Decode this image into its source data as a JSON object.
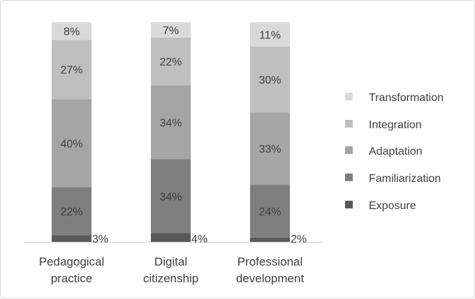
{
  "chart_data": {
    "type": "stacked-bar-100",
    "categories": [
      [
        "Pedagogical",
        "practice"
      ],
      [
        "Digital",
        "citizenship"
      ],
      [
        "Professional",
        "development"
      ]
    ],
    "series": [
      {
        "name": "Exposure",
        "values": [
          3,
          4,
          2
        ],
        "color": "#595959"
      },
      {
        "name": "Familiarization",
        "values": [
          22,
          34,
          24
        ],
        "color": "#7f7f7f"
      },
      {
        "name": "Adaptation",
        "values": [
          40,
          34,
          33
        ],
        "color": "#a5a5a5"
      },
      {
        "name": "Integration",
        "values": [
          27,
          22,
          30
        ],
        "color": "#bfbfbf"
      },
      {
        "name": "Transformation",
        "values": [
          8,
          7,
          11
        ],
        "color": "#d9d9d9"
      }
    ],
    "data_label_suffix": "%",
    "legend_position": "right",
    "grid": false,
    "ylim": [
      0,
      100
    ],
    "label_color": "#404040"
  }
}
